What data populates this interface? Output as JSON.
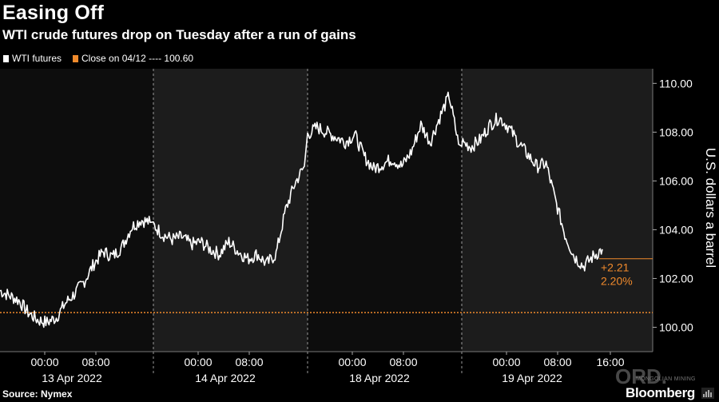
{
  "title": "Easing Off",
  "subtitle": "WTI crude futures drop on Tuesday after a run of gains",
  "legend": {
    "series_label": "WTI futures",
    "ref_label": "Close on 04/12 ---- 100.60"
  },
  "annotation": {
    "change": "+2.21",
    "pct": "2.20%"
  },
  "source": "Source: Nymex",
  "brand": "Bloomberg",
  "watermark": "ORD.",
  "watermark_sub": "MONGOLIAN MINING",
  "colors": {
    "background": "#000000",
    "panel_dark": "#0d0d0d",
    "panel_light": "#1c1c1c",
    "line": "#ffffff",
    "reference": "#f08a2c",
    "text": "#ffffff",
    "grid": "#3a3a3a"
  },
  "chart_data": {
    "type": "line",
    "ylabel": "U.S. dollars a barrel",
    "ylim": [
      99,
      110.6
    ],
    "yticks": [
      100.0,
      102.0,
      104.0,
      106.0,
      108.0,
      110.0
    ],
    "ytick_labels": [
      "100.00",
      "102.00",
      "104.00",
      "106.00",
      "108.00",
      "110.00"
    ],
    "reference_line": {
      "label": "Close on 04/12",
      "value": 100.6
    },
    "last_price_marker": 102.81,
    "sessions": [
      {
        "date": "13 Apr 2022",
        "shaded": false,
        "ticks": [
          "00:00",
          "08:00"
        ]
      },
      {
        "date": "14 Apr 2022",
        "shaded": true,
        "ticks": [
          "00:00",
          "08:00"
        ]
      },
      {
        "date": "18 Apr 2022",
        "shaded": false,
        "ticks": [
          "00:00",
          "08:00"
        ]
      },
      {
        "date": "19 Apr 2022",
        "shaded": true,
        "ticks": [
          "00:00",
          "08:00",
          "16:00"
        ]
      }
    ],
    "series": [
      {
        "name": "WTI futures",
        "session_values": [
          [
            101.5,
            101.3,
            101.1,
            100.6,
            100.3,
            100.2,
            100.4,
            101.0,
            101.4,
            101.9,
            102.6,
            103.1,
            102.9,
            103.3,
            104.1,
            104.4,
            104.3
          ],
          [
            104.2,
            103.8,
            103.6,
            103.7,
            103.4,
            103.5,
            103.2,
            103.0,
            103.5,
            103.1,
            102.8,
            103.0,
            102.6,
            103.0,
            104.8,
            105.9,
            106.6
          ],
          [
            107.9,
            108.2,
            108.0,
            107.8,
            107.6,
            107.9,
            107.0,
            106.5,
            106.7,
            106.9,
            106.6,
            107.2,
            108.3,
            107.6,
            108.6,
            109.5,
            107.5
          ],
          [
            107.6,
            107.4,
            107.7,
            108.3,
            108.6,
            108.2,
            107.6,
            107.1,
            106.6,
            106.7,
            105.2,
            103.8,
            102.9,
            102.5,
            102.9,
            103.2
          ]
        ]
      }
    ]
  }
}
